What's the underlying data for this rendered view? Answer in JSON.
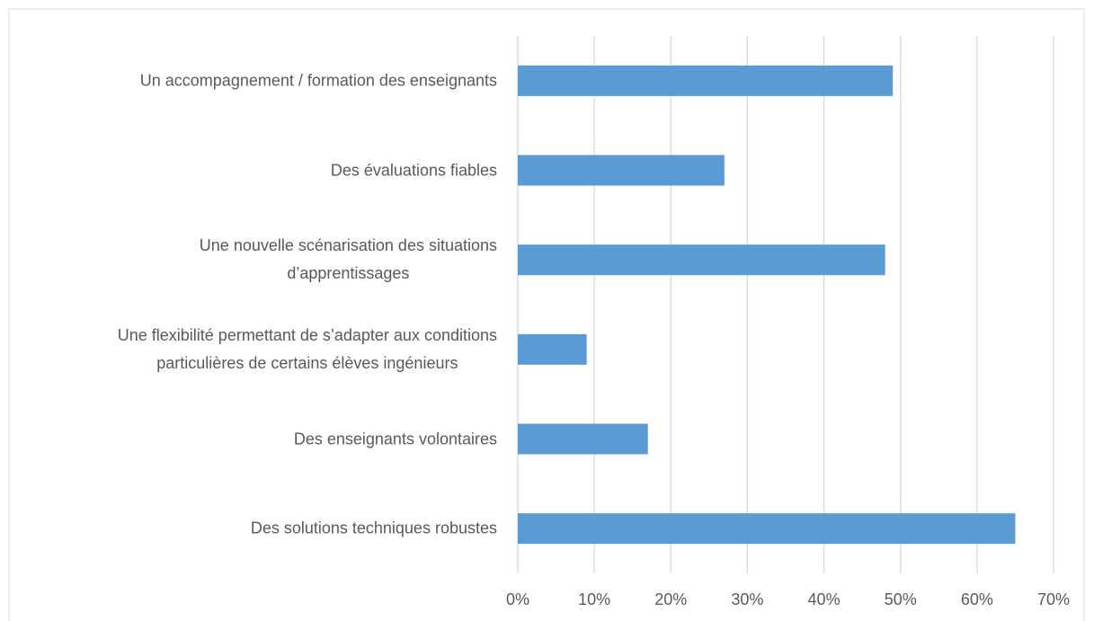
{
  "chart_data": {
    "type": "hbar",
    "categories": [
      "Un accompagnement / formation des enseignants",
      "Des évaluations fiables",
      "Une nouvelle scénarisation des situations\nd’apprentissages",
      "Une flexibilité  permettant de s’adapter aux conditions\nparticulières de certains élèves ingénieurs",
      "Des enseignants volontaires",
      "Des solutions techniques robustes"
    ],
    "values": [
      49,
      27,
      48,
      9,
      17,
      65
    ],
    "color": "#5b9bd5",
    "xlim": [
      0,
      70
    ],
    "xticks": [
      {
        "value": 0,
        "label": "0%"
      },
      {
        "value": 10,
        "label": "10%"
      },
      {
        "value": 20,
        "label": "20%"
      },
      {
        "value": 30,
        "label": "30%"
      },
      {
        "value": 40,
        "label": "40%"
      },
      {
        "value": 50,
        "label": "50%"
      },
      {
        "value": 60,
        "label": "60%"
      },
      {
        "value": 70,
        "label": "70%"
      }
    ],
    "grid": true
  }
}
